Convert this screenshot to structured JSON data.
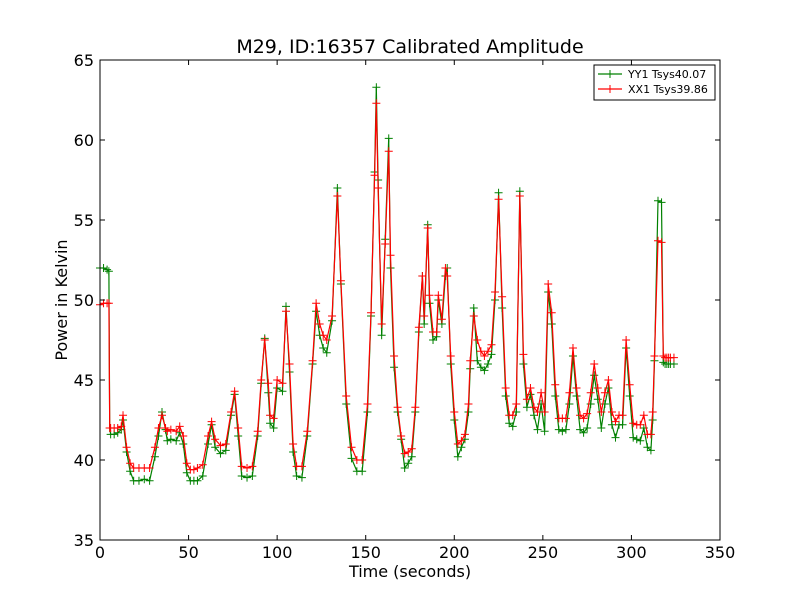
{
  "chart_data": {
    "type": "line",
    "title": "M29, ID:16357 Calibrated Amplitude",
    "xlabel": "Time (seconds)",
    "ylabel": "Power in Kelvin",
    "xlim": [
      0,
      350
    ],
    "ylim": [
      35,
      65
    ],
    "xticks": [
      0,
      50,
      100,
      150,
      200,
      250,
      300,
      350
    ],
    "yticks": [
      35,
      40,
      45,
      50,
      55,
      60,
      65
    ],
    "grid": false,
    "legend_position": "top-right",
    "marker": "plus",
    "series": [
      {
        "name": "YY1 Tsys40.07",
        "color": "#008000",
        "x": [
          0,
          2,
          4,
          5,
          5.5,
          6,
          8,
          10,
          12,
          13,
          15,
          17,
          19,
          22,
          25,
          28,
          31,
          33,
          35,
          37,
          38,
          40,
          43,
          45,
          47,
          49,
          51,
          53,
          55,
          58,
          61,
          63,
          65,
          68,
          71,
          74,
          76,
          78,
          80,
          83,
          86,
          89,
          91,
          93,
          95,
          96,
          98,
          100,
          103,
          105,
          107,
          109,
          111,
          114,
          117,
          120,
          122,
          124,
          126,
          128,
          131,
          134,
          136,
          139,
          142,
          145,
          148,
          151,
          153,
          155,
          156,
          157,
          159,
          161,
          163,
          164,
          166,
          168,
          170,
          172,
          174,
          176,
          178,
          180,
          182,
          183,
          185,
          186,
          188,
          190,
          191,
          193,
          195,
          196,
          198,
          200,
          202,
          204,
          206,
          208,
          209,
          211,
          213,
          215,
          217,
          219,
          221,
          223,
          225,
          227,
          229,
          231,
          233,
          235,
          237,
          239,
          241,
          243,
          245,
          247,
          249,
          251,
          253,
          255,
          257,
          259,
          261,
          263,
          265,
          267,
          269,
          271,
          273,
          275,
          277,
          279,
          281,
          283,
          285,
          287,
          289,
          291,
          293,
          295,
          297,
          299,
          301,
          303,
          305,
          307,
          309,
          311,
          312,
          313,
          315,
          317,
          318,
          319,
          320,
          321,
          322,
          324
        ],
        "y": [
          52,
          52,
          51.9,
          51.8,
          42,
          41.6,
          41.6,
          41.7,
          41.9,
          42.5,
          40.5,
          39.3,
          38.7,
          38.7,
          38.8,
          38.7,
          40.2,
          41.5,
          43,
          41.9,
          41.2,
          41.3,
          41.2,
          41.7,
          41,
          39.2,
          38.7,
          38.7,
          38.7,
          39,
          41,
          42.2,
          40.8,
          40.4,
          40.6,
          42.8,
          44.1,
          41.5,
          39,
          38.9,
          39,
          41.5,
          44.8,
          47.6,
          44.2,
          42.3,
          42,
          44.5,
          44.3,
          49.6,
          45.5,
          40.5,
          39,
          38.9,
          41.5,
          46,
          49.3,
          47.8,
          47,
          46.7,
          48.7,
          57,
          51,
          43.5,
          40.1,
          39.3,
          39.3,
          43,
          49,
          58,
          63.3,
          57.5,
          47.8,
          53.8,
          60.1,
          52,
          45.8,
          43,
          41.3,
          39.5,
          39.8,
          40.2,
          43,
          48,
          51.5,
          48.5,
          54.7,
          49.8,
          47.5,
          47.7,
          50,
          48.5,
          51.5,
          52,
          46,
          42.5,
          40.2,
          40.8,
          41.3,
          43,
          45.7,
          49.5,
          46.2,
          45.8,
          45.6,
          46,
          46.6,
          50,
          56.7,
          49.5,
          44,
          42.3,
          42.1,
          43,
          56.8,
          46,
          43.3,
          44.1,
          42.8,
          41.9,
          43.5,
          41.8,
          50.5,
          48.5,
          44,
          41.9,
          41.8,
          41.9,
          43.5,
          46.5,
          44,
          41.9,
          41.7,
          42,
          43.5,
          45.3,
          43.8,
          42,
          43.5,
          44.5,
          42.2,
          41.4,
          42.2,
          42.2,
          47,
          44,
          41.4,
          41.3,
          41.2,
          42,
          40.8,
          40.6,
          42.5,
          46.2,
          56.2,
          56.1,
          46.1,
          46,
          46,
          46,
          46,
          46
        ]
      },
      {
        "name": "XX1 Tsys39.86",
        "color": "#ff0000",
        "x": [
          0,
          2,
          4,
          5,
          5.5,
          6,
          8,
          10,
          12,
          13,
          15,
          17,
          19,
          22,
          25,
          28,
          31,
          33,
          35,
          37,
          38,
          40,
          43,
          45,
          47,
          49,
          51,
          53,
          55,
          58,
          61,
          63,
          65,
          68,
          71,
          74,
          76,
          78,
          80,
          83,
          86,
          89,
          91,
          93,
          95,
          96,
          98,
          100,
          103,
          105,
          107,
          109,
          111,
          114,
          117,
          120,
          122,
          124,
          126,
          128,
          131,
          134,
          136,
          139,
          142,
          145,
          148,
          151,
          153,
          155,
          156,
          157,
          159,
          161,
          163,
          164,
          166,
          168,
          170,
          172,
          174,
          176,
          178,
          180,
          182,
          183,
          185,
          186,
          188,
          190,
          191,
          193,
          195,
          196,
          198,
          200,
          202,
          204,
          206,
          208,
          209,
          211,
          213,
          215,
          217,
          219,
          221,
          223,
          225,
          227,
          229,
          231,
          233,
          235,
          237,
          239,
          241,
          243,
          245,
          247,
          249,
          251,
          253,
          255,
          257,
          259,
          261,
          263,
          265,
          267,
          269,
          271,
          273,
          275,
          277,
          279,
          281,
          283,
          285,
          287,
          289,
          291,
          293,
          295,
          297,
          299,
          301,
          303,
          305,
          307,
          309,
          311,
          312,
          313,
          315,
          317,
          318,
          319,
          320,
          321,
          322,
          324
        ],
        "y": [
          49.7,
          49.8,
          49.8,
          49.8,
          42,
          42,
          42,
          42,
          42.1,
          42.8,
          40.8,
          39.8,
          39.5,
          39.5,
          39.5,
          39.5,
          40.8,
          42,
          42.8,
          42,
          41.8,
          41.9,
          41.8,
          42.1,
          41.5,
          39.8,
          39.4,
          39.4,
          39.5,
          39.7,
          41.5,
          42.4,
          41.3,
          40.9,
          41,
          43,
          44.3,
          42,
          39.6,
          39.5,
          39.6,
          41.8,
          45,
          47.5,
          44.8,
          42.8,
          42.6,
          45,
          44.8,
          49.3,
          46,
          41,
          39.6,
          39.6,
          41.8,
          46.2,
          49.8,
          48.5,
          47.8,
          47.5,
          49,
          56.5,
          51.2,
          44,
          40.8,
          40,
          40,
          43.5,
          49.2,
          57.8,
          62.3,
          57,
          48.5,
          53.5,
          59.3,
          52.8,
          46.5,
          43.3,
          41.5,
          40.4,
          40.5,
          40.7,
          43.3,
          48.3,
          51.5,
          49,
          54.5,
          50.3,
          48,
          48,
          50.3,
          48.8,
          52,
          51.5,
          46.5,
          43,
          41,
          41.2,
          41.6,
          43.5,
          46.2,
          49,
          47.5,
          46.8,
          46.5,
          46.8,
          47.2,
          50.5,
          56.3,
          50.2,
          44.5,
          42.8,
          42.8,
          43.5,
          56.5,
          46.6,
          43.8,
          44.5,
          43.3,
          43,
          44.2,
          43,
          51,
          49.2,
          44.7,
          42.6,
          42.6,
          42.6,
          44.2,
          47,
          44.5,
          42.8,
          42.6,
          42.9,
          44.2,
          46,
          44.5,
          43,
          44.2,
          45,
          43,
          42.4,
          42.8,
          42.8,
          47.5,
          44.7,
          42.3,
          42.2,
          42.2,
          42.8,
          41.6,
          41.6,
          43,
          46.5,
          53.7,
          53.6,
          46.5,
          46.4,
          46.4,
          46.4,
          46.4,
          46.4
        ]
      }
    ]
  }
}
